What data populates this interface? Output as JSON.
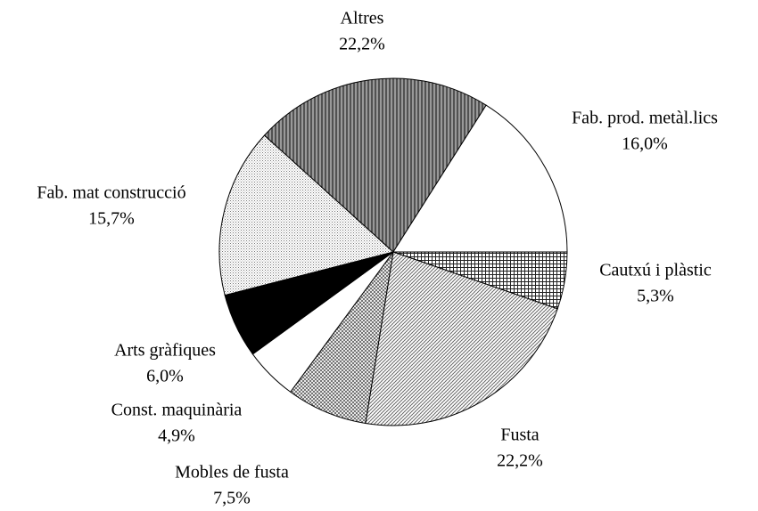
{
  "chart_data": {
    "type": "pie",
    "categories": [
      "Cautxú i plàstic",
      "Fusta",
      "Mobles de fusta",
      "Const. maquinària",
      "Arts gràfiques",
      "Fab. mat construcció",
      "Altres",
      "Fab. prod. metàl.lics"
    ],
    "values": [
      5.3,
      22.2,
      7.5,
      4.9,
      6.0,
      15.7,
      22.2,
      16.0
    ],
    "value_labels": [
      "5,3%",
      "22,2%",
      "7,5%",
      "4,9%",
      "6,0%",
      "15,7%",
      "22,2%",
      "16,0%"
    ]
  }
}
